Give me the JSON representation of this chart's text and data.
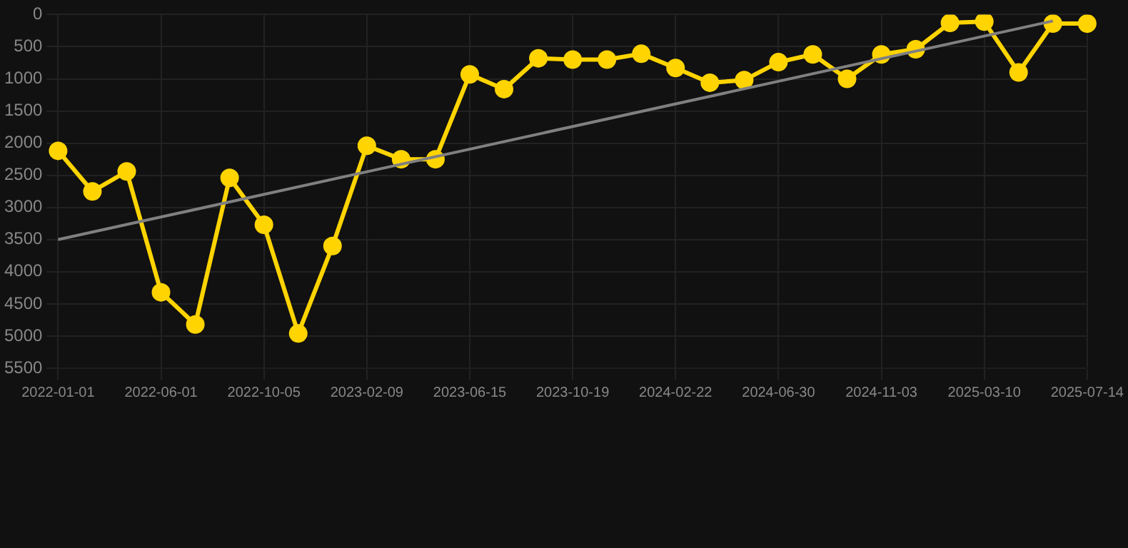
{
  "chart_data": {
    "type": "line",
    "categories": [
      "2022-01-01",
      null,
      null,
      "2022-06-01",
      null,
      null,
      "2022-10-05",
      null,
      null,
      "2023-02-09",
      null,
      null,
      "2023-06-15",
      null,
      null,
      "2023-10-19",
      null,
      null,
      "2024-02-22",
      null,
      null,
      "2024-06-30",
      null,
      null,
      "2024-11-03",
      null,
      null,
      "2025-03-10",
      null,
      null,
      "2025-07-14"
    ],
    "series": [
      {
        "color": "#ffd400",
        "marker": "circle",
        "values": [
          2120,
          2750,
          2440,
          4320,
          4820,
          2540,
          3270,
          4960,
          3600,
          2040,
          2250,
          2250,
          930,
          1160,
          680,
          700,
          700,
          610,
          830,
          1060,
          1020,
          740,
          620,
          1000,
          620,
          540,
          130,
          110,
          900,
          140,
          140
        ]
      },
      {
        "color": "#808080",
        "marker": "none",
        "values": [
          3500,
          null,
          null,
          null,
          null,
          null,
          null,
          null,
          null,
          null,
          null,
          null,
          null,
          null,
          null,
          null,
          null,
          null,
          null,
          null,
          null,
          null,
          null,
          null,
          null,
          null,
          null,
          null,
          null,
          100,
          null
        ]
      }
    ],
    "ylim": [
      5500,
      0
    ],
    "yticks": [
      0,
      500,
      1000,
      1500,
      2000,
      2500,
      3000,
      3500,
      4000,
      4500,
      5000,
      5500
    ],
    "grid": true,
    "legend": false
  }
}
